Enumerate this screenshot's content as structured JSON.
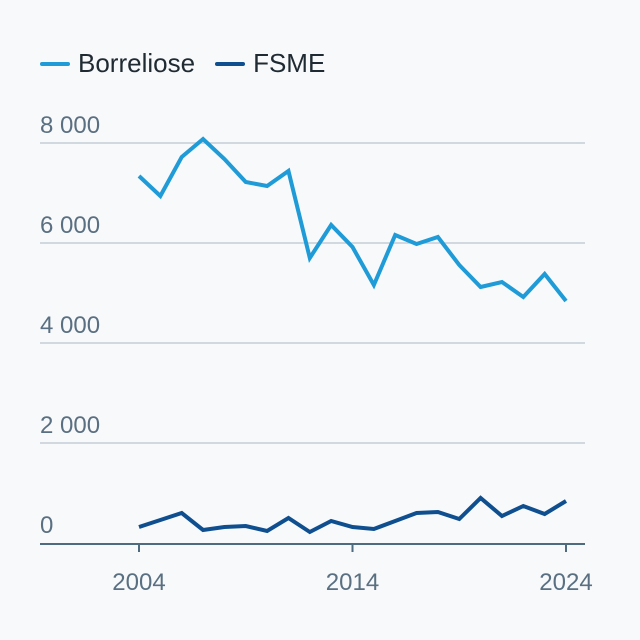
{
  "chart_data": {
    "type": "line",
    "title": "",
    "xlabel": "",
    "ylabel": "",
    "x": [
      2004,
      2005,
      2006,
      2007,
      2008,
      2009,
      2010,
      2011,
      2012,
      2013,
      2014,
      2015,
      2016,
      2017,
      2018,
      2019,
      2020,
      2021,
      2022,
      2023,
      2024
    ],
    "series": [
      {
        "name": "Borreliose",
        "color": "#1f9bd7",
        "values": [
          7340,
          6940,
          7720,
          8080,
          7680,
          7220,
          7140,
          7440,
          5700,
          6360,
          5920,
          5160,
          6160,
          5980,
          6120,
          5560,
          5120,
          5220,
          4920,
          5380,
          4840
        ]
      },
      {
        "name": "FSME",
        "color": "#0f4f8f",
        "values": [
          320,
          460,
          600,
          260,
          320,
          340,
          240,
          500,
          220,
          440,
          320,
          280,
          440,
          600,
          620,
          480,
          900,
          540,
          740,
          580,
          840
        ]
      }
    ],
    "ylim": [
      0,
      8000
    ],
    "xlim": [
      2004,
      2024
    ],
    "yticks": [
      {
        "value": 0,
        "label": "0"
      },
      {
        "value": 2000,
        "label": "2 000"
      },
      {
        "value": 4000,
        "label": "4 000"
      },
      {
        "value": 6000,
        "label": "6 000"
      },
      {
        "value": 8000,
        "label": "8 000"
      }
    ],
    "xticks": [
      {
        "value": 2004,
        "label": "2004"
      },
      {
        "value": 2014,
        "label": "2014"
      },
      {
        "value": 2024,
        "label": "2024"
      }
    ],
    "grid": true,
    "legend_position": "top-left"
  }
}
